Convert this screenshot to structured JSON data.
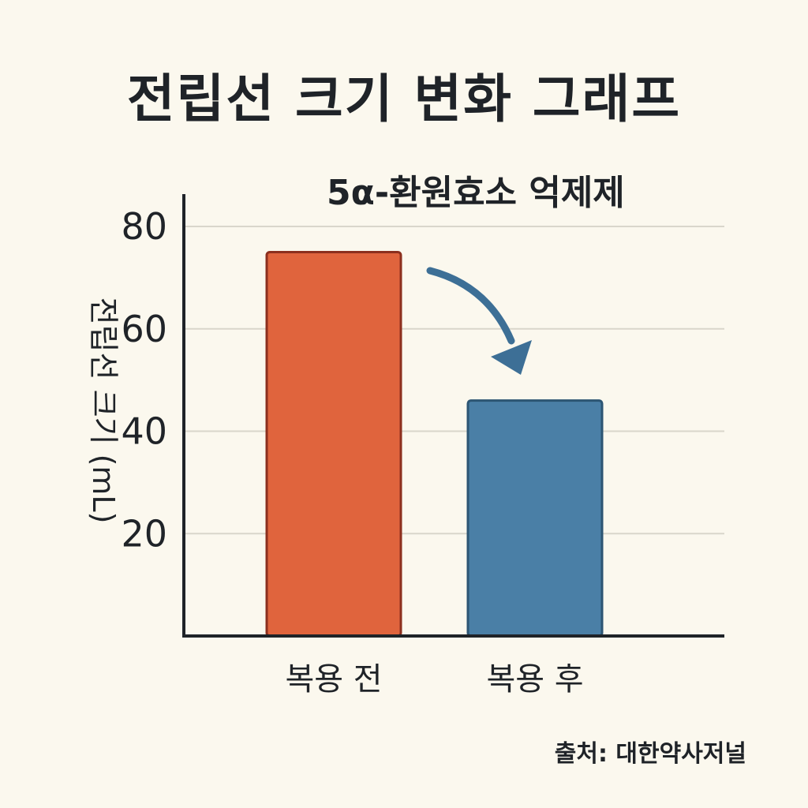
{
  "chart_data": {
    "type": "bar",
    "title": "전립선 크기 변화 그래프",
    "subtitle": "5α-환원효소 억제제",
    "xlabel": "",
    "ylabel": "전립선 크기 (mL)",
    "categories": [
      "복용 전",
      "복용 후"
    ],
    "values": [
      75,
      46
    ],
    "ylim": [
      0,
      80
    ],
    "yticks": [
      20,
      40,
      60,
      80
    ],
    "grid": true,
    "annotation": "decrease-arrow",
    "colors": {
      "before": "#e0643d",
      "before_stroke": "#8c2f1e",
      "after": "#4a7fa6",
      "after_stroke": "#2c5573",
      "arrow": "#3d6f96",
      "grid": "#d9d6cb",
      "axis": "#1f2328"
    }
  },
  "source": "출처: 대한약사저널"
}
